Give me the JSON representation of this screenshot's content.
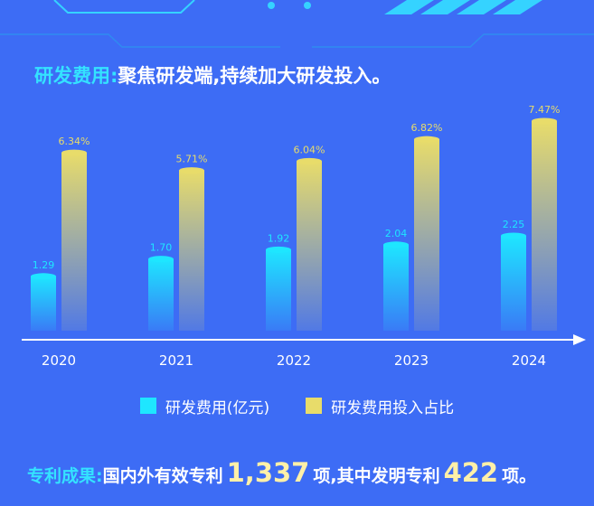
{
  "heading": {
    "highlight": "研发费用:",
    "text": "聚焦研发端,持续加大研发投入。"
  },
  "colors": {
    "background": "#3d6cf5",
    "cyan": "#1ee6ff",
    "yellow": "#e8dc6a",
    "highlight_text": "#34e2ff"
  },
  "chart_data": {
    "type": "bar",
    "categories": [
      "2020",
      "2021",
      "2022",
      "2023",
      "2024"
    ],
    "series": [
      {
        "name": "研发费用(亿元)",
        "values": [
          1.29,
          1.7,
          1.92,
          2.04,
          2.25
        ],
        "labels": [
          "1.29",
          "1.70",
          "1.92",
          "2.04",
          "2.25"
        ],
        "color": "#1ee6ff"
      },
      {
        "name": "研发费用投入占比",
        "values": [
          6.34,
          5.71,
          6.04,
          6.82,
          7.47
        ],
        "labels": [
          "6.34%",
          "5.71%",
          "6.04%",
          "6.82%",
          "7.47%"
        ],
        "color": "#e8dc6a"
      }
    ],
    "xlabel": "",
    "ylabel": "",
    "grid": false,
    "legend_position": "bottom"
  },
  "legend": {
    "items": [
      {
        "label": "研发费用(亿元)",
        "color": "#1ee6ff"
      },
      {
        "label": "研发费用投入占比",
        "color": "#e8dc6a"
      }
    ]
  },
  "footer": {
    "highlight": "专利成果:",
    "text1": "国内外有效专利",
    "number1": "1,337",
    "text2": "项,其中发明专利",
    "number2": "422",
    "text3": "项。"
  }
}
